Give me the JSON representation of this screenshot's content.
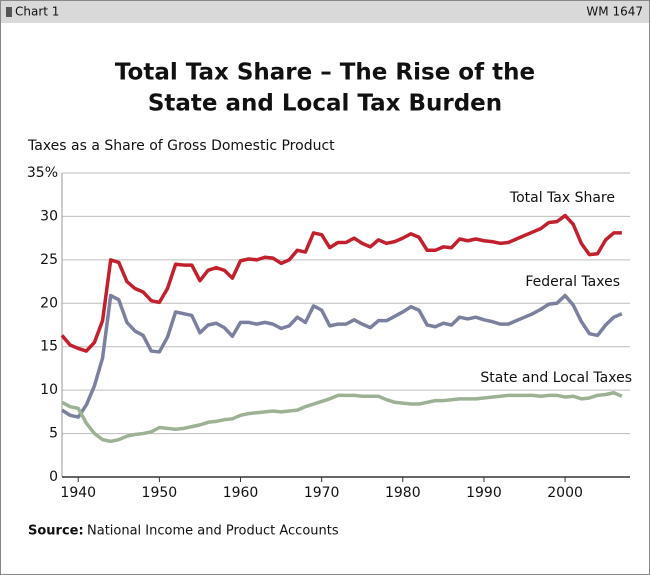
{
  "header": {
    "left": "Chart 1",
    "right": "WM 1647"
  },
  "chart_data": {
    "type": "line",
    "title": [
      "Total Tax Share – The Rise of the",
      "State and Local Tax Burden"
    ],
    "y_axis_label": "Taxes as a Share of  Gross Domestic Product",
    "x": [
      1938,
      1939,
      1940,
      1941,
      1942,
      1943,
      1944,
      1945,
      1946,
      1947,
      1948,
      1949,
      1950,
      1951,
      1952,
      1953,
      1954,
      1955,
      1956,
      1957,
      1958,
      1959,
      1960,
      1961,
      1962,
      1963,
      1964,
      1965,
      1966,
      1967,
      1968,
      1969,
      1970,
      1971,
      1972,
      1973,
      1974,
      1975,
      1976,
      1977,
      1978,
      1979,
      1980,
      1981,
      1982,
      1983,
      1984,
      1985,
      1986,
      1987,
      1988,
      1989,
      1990,
      1991,
      1992,
      1993,
      1994,
      1995,
      1996,
      1997,
      1998,
      1999,
      2000,
      2001,
      2002,
      2003,
      2004,
      2005,
      2006,
      2007
    ],
    "series": [
      {
        "name": "Total Tax Share",
        "color": "#c1202c",
        "values": [
          16.3,
          15.2,
          14.8,
          14.5,
          15.5,
          18,
          25,
          24.7,
          22.5,
          21.7,
          21.3,
          20.3,
          20.1,
          21.7,
          24.5,
          24.4,
          24.4,
          22.6,
          23.8,
          24.1,
          23.8,
          22.9,
          24.9,
          25.1,
          25,
          25.3,
          25.2,
          24.6,
          25,
          26.1,
          25.9,
          28.1,
          27.9,
          26.4,
          27,
          27,
          27.5,
          26.9,
          26.5,
          27.3,
          26.9,
          27.1,
          27.5,
          28,
          27.6,
          26.1,
          26.1,
          26.5,
          26.4,
          27.4,
          27.2,
          27.4,
          27.2,
          27.1,
          26.9,
          27,
          27.4,
          27.8,
          28.2,
          28.6,
          29.3,
          29.4,
          30.1,
          29.1,
          26.9,
          25.6,
          25.7,
          27.3,
          28.1,
          28.1
        ]
      },
      {
        "name": "Federal Taxes",
        "color": "#7b809f",
        "values": [
          7.7,
          7.1,
          6.9,
          8.3,
          10.5,
          13.7,
          20.9,
          20.4,
          17.8,
          16.8,
          16.3,
          14.5,
          14.4,
          16.1,
          19,
          18.8,
          18.6,
          16.6,
          17.5,
          17.7,
          17.2,
          16.2,
          17.8,
          17.8,
          17.6,
          17.8,
          17.6,
          17.1,
          17.4,
          18.4,
          17.8,
          19.7,
          19.2,
          17.4,
          17.6,
          17.6,
          18.1,
          17.6,
          17.2,
          18,
          18,
          18.5,
          19,
          19.6,
          19.2,
          17.5,
          17.3,
          17.7,
          17.5,
          18.4,
          18.2,
          18.4,
          18.1,
          17.9,
          17.6,
          17.6,
          18,
          18.4,
          18.8,
          19.3,
          19.9,
          20,
          20.9,
          19.8,
          17.9,
          16.5,
          16.3,
          17.5,
          18.4,
          18.8
        ]
      },
      {
        "name": "State and Local Taxes",
        "color": "#9db295",
        "values": [
          8.6,
          8.1,
          7.9,
          6.2,
          5,
          4.3,
          4.1,
          4.3,
          4.7,
          4.9,
          5,
          5.2,
          5.7,
          5.6,
          5.5,
          5.6,
          5.8,
          6,
          6.3,
          6.4,
          6.6,
          6.7,
          7.1,
          7.3,
          7.4,
          7.5,
          7.6,
          7.5,
          7.6,
          7.7,
          8.1,
          8.4,
          8.7,
          9,
          9.4,
          9.4,
          9.4,
          9.3,
          9.3,
          9.3,
          8.9,
          8.6,
          8.5,
          8.4,
          8.4,
          8.6,
          8.8,
          8.8,
          8.9,
          9,
          9,
          9,
          9.1,
          9.2,
          9.3,
          9.4,
          9.4,
          9.4,
          9.4,
          9.3,
          9.4,
          9.4,
          9.2,
          9.3,
          9,
          9.1,
          9.4,
          9.5,
          9.7,
          9.3
        ]
      }
    ],
    "xlim": [
      1938,
      2008
    ],
    "xticks": [
      1940,
      1950,
      1960,
      1970,
      1980,
      1990,
      2000
    ],
    "ylim": [
      0,
      35
    ],
    "yticks": [
      0,
      5,
      10,
      15,
      20,
      25,
      30,
      {
        "value": 35,
        "label": "35%"
      }
    ],
    "grid": true
  },
  "source": {
    "label": "Source:",
    "text": "National Income and Product Accounts"
  }
}
